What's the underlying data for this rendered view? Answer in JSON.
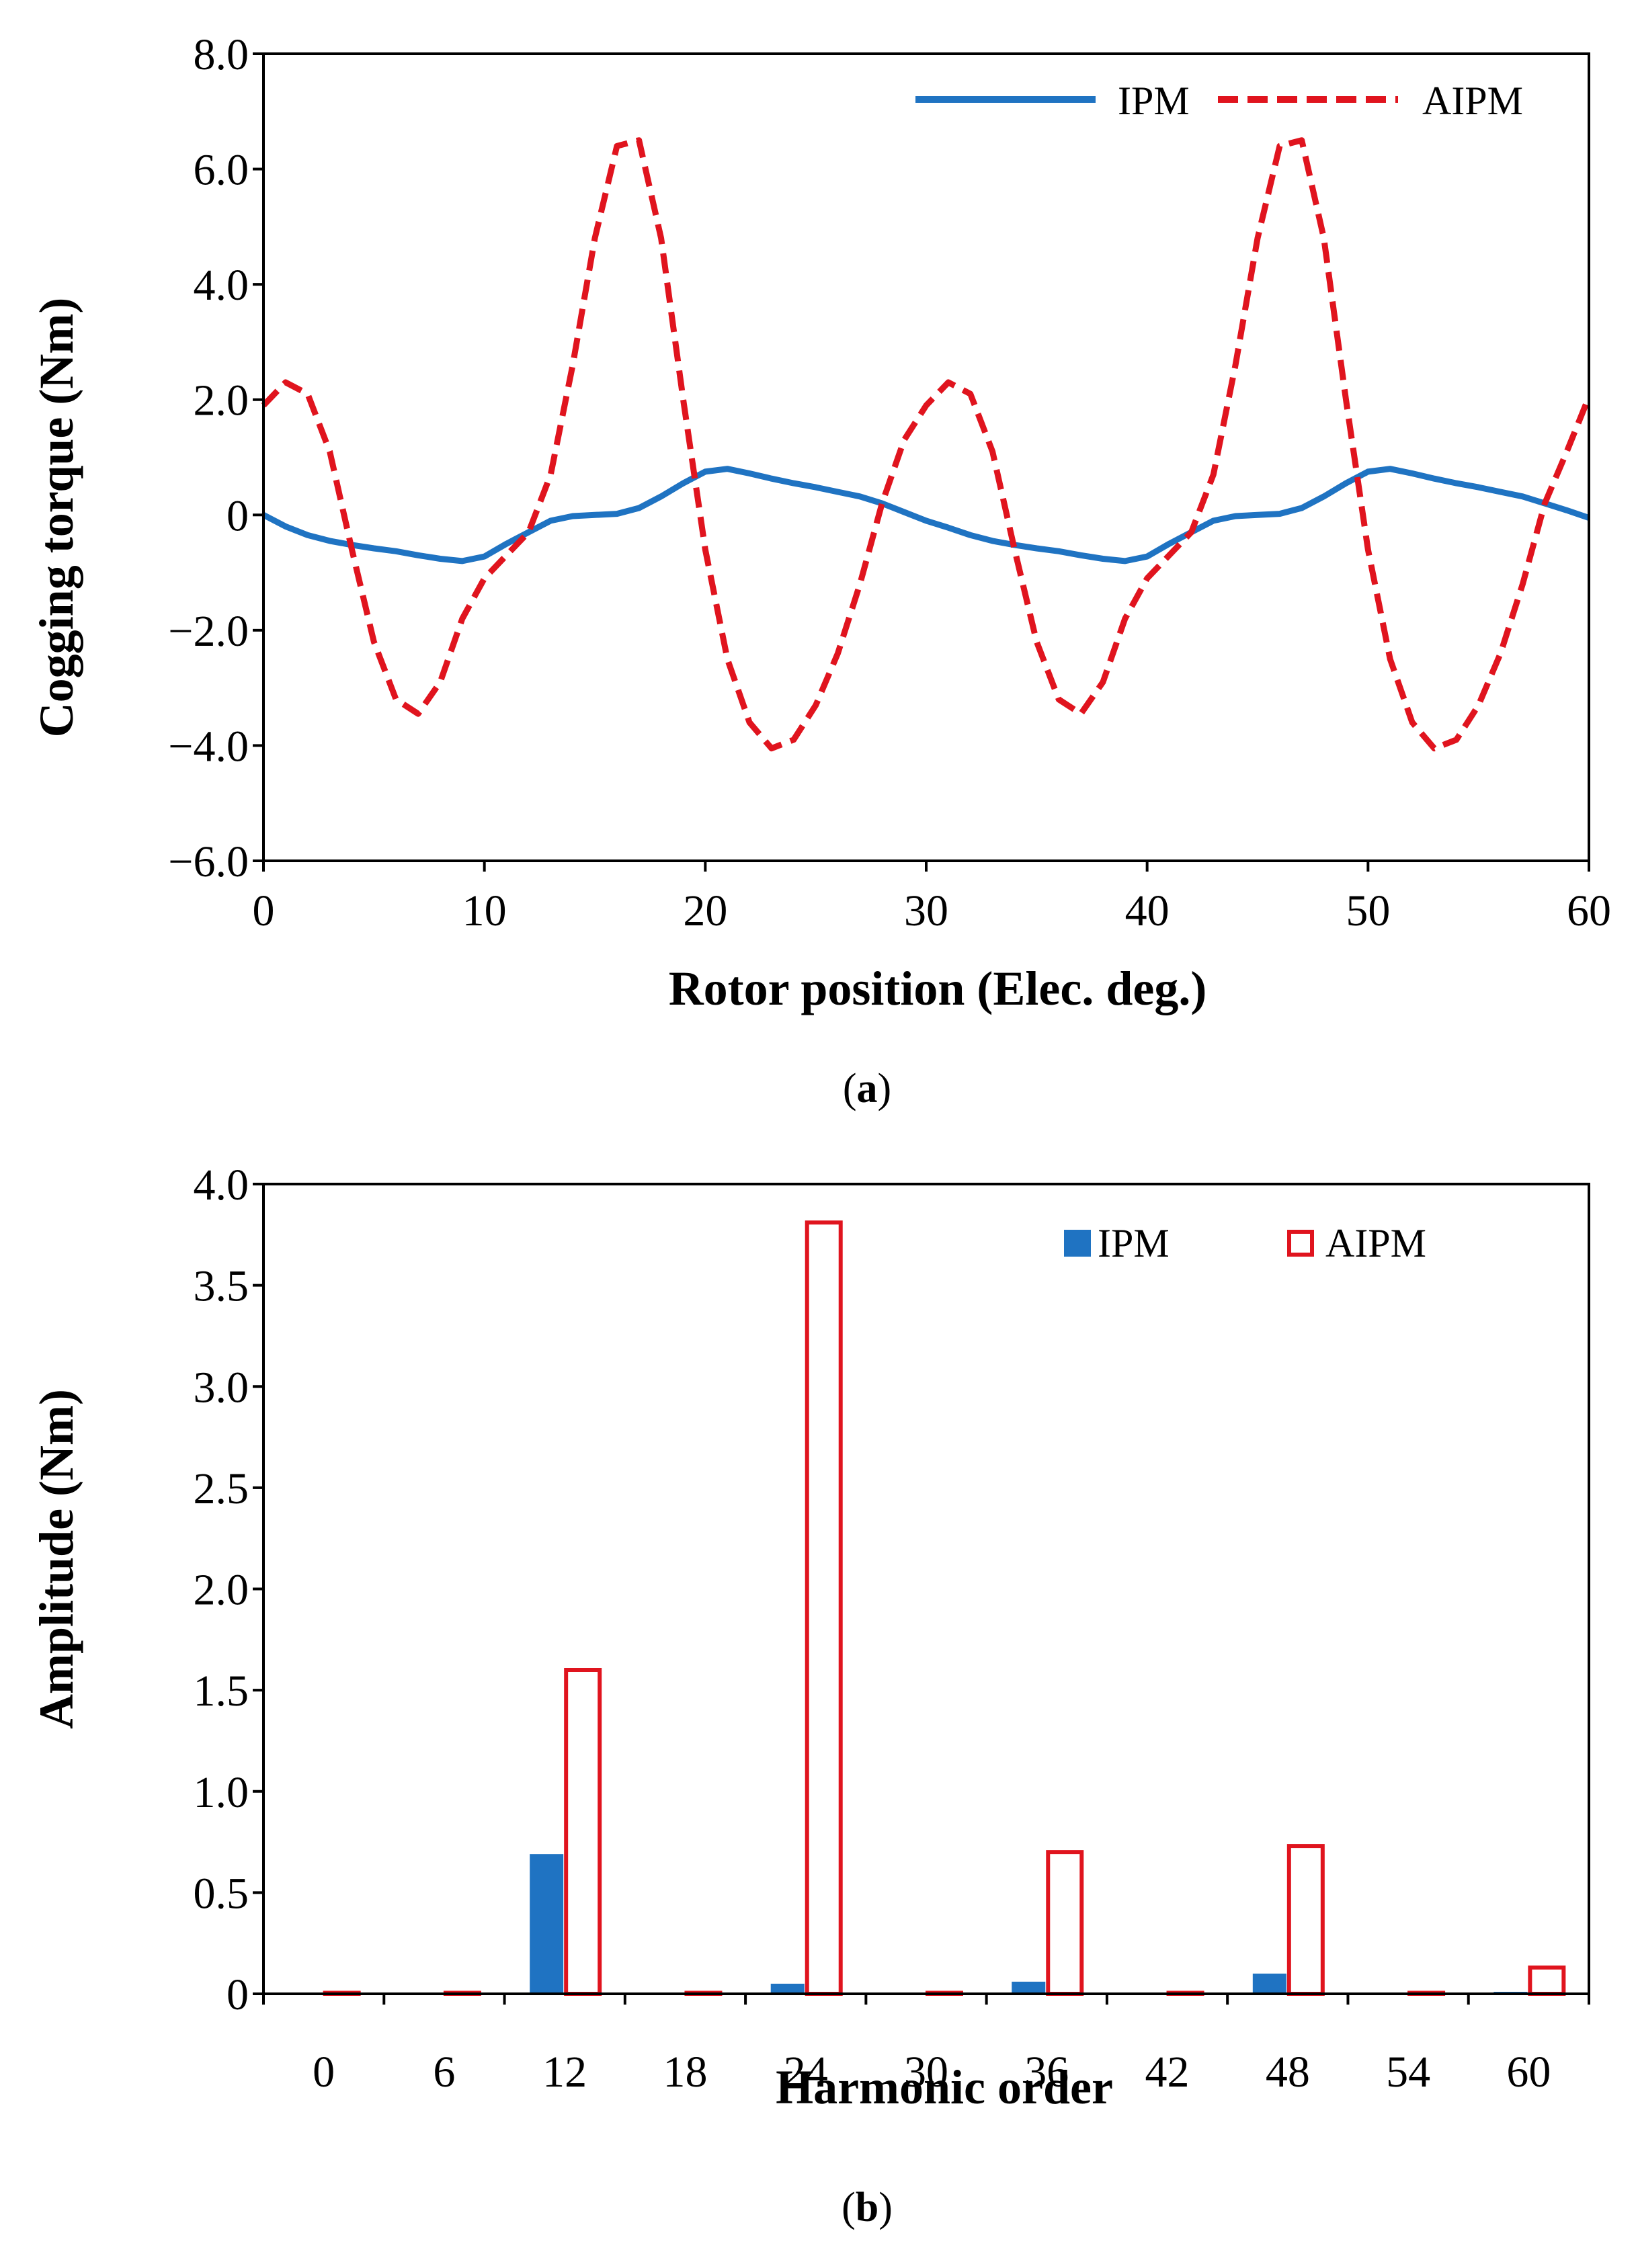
{
  "chart_data": [
    {
      "type": "line",
      "panel_label": "a",
      "xlabel": "Rotor position (Elec. deg.)",
      "ylabel": "Cogging torque (Nm)",
      "xlim": [
        0,
        60
      ],
      "ylim": [
        -6.0,
        8.0
      ],
      "xticks": [
        0,
        10,
        20,
        30,
        40,
        50,
        60
      ],
      "xtick_labels": [
        "0",
        "10",
        "20",
        "30",
        "40",
        "50",
        "60"
      ],
      "yticks": [
        -6.0,
        -4.0,
        -2.0,
        0,
        2.0,
        4.0,
        6.0,
        8.0
      ],
      "ytick_labels": [
        "−6.0",
        "−4.0",
        "−2.0",
        "0",
        "2.0",
        "4.0",
        "6.0",
        "8.0"
      ],
      "grid": false,
      "legend_position": "top-right",
      "series": [
        {
          "name": "IPM",
          "color": "#1f73c2",
          "style": "solid",
          "x": [
            0,
            1,
            2,
            3,
            4,
            5,
            6,
            7,
            8,
            9,
            10,
            11,
            12,
            13,
            14,
            15,
            16,
            17,
            18,
            19,
            20,
            21,
            22,
            23,
            24,
            25,
            26,
            27,
            28,
            29,
            30,
            31,
            32,
            33,
            34,
            35,
            36,
            37,
            38,
            39,
            40,
            41,
            42,
            43,
            44,
            45,
            46,
            47,
            48,
            49,
            50,
            51,
            52,
            53,
            54,
            55,
            56,
            57,
            58,
            59,
            60
          ],
          "y": [
            0,
            -0.2,
            -0.35,
            -0.45,
            -0.52,
            -0.58,
            -0.63,
            -0.7,
            -0.76,
            -0.8,
            -0.72,
            -0.5,
            -0.3,
            -0.1,
            -0.02,
            0,
            0.02,
            0.12,
            0.32,
            0.55,
            0.75,
            0.8,
            0.72,
            0.63,
            0.55,
            0.48,
            0.4,
            0.32,
            0.2,
            0.05,
            -0.1,
            -0.22,
            -0.35,
            -0.45,
            -0.52,
            -0.58,
            -0.63,
            -0.7,
            -0.76,
            -0.8,
            -0.72,
            -0.5,
            -0.3,
            -0.1,
            -0.02,
            0,
            0.02,
            0.12,
            0.32,
            0.55,
            0.75,
            0.8,
            0.72,
            0.63,
            0.55,
            0.48,
            0.4,
            0.32,
            0.2,
            0.08,
            -0.05
          ]
        },
        {
          "name": "AIPM",
          "color": "#e0141e",
          "style": "dashed",
          "x": [
            0,
            1,
            2,
            3,
            4,
            5,
            6,
            7,
            8,
            9,
            10,
            11,
            12,
            13,
            14,
            15,
            16,
            17,
            18,
            19,
            20,
            21,
            22,
            23,
            24,
            25,
            26,
            27,
            28,
            29,
            30,
            31,
            32,
            33,
            34,
            35,
            36,
            37,
            38,
            39,
            40,
            41,
            42,
            43,
            44,
            45,
            46,
            47,
            48,
            49,
            50,
            51,
            52,
            53,
            54,
            55,
            56,
            57,
            58,
            59,
            60
          ],
          "y": [
            1.9,
            2.3,
            2.1,
            1.1,
            -0.6,
            -2.2,
            -3.2,
            -3.45,
            -2.9,
            -1.8,
            -1.1,
            -0.7,
            -0.3,
            0.7,
            2.6,
            4.8,
            6.4,
            6.5,
            4.8,
            2.0,
            -0.6,
            -2.5,
            -3.6,
            -4.05,
            -3.9,
            -3.3,
            -2.4,
            -1.2,
            0.2,
            1.3,
            1.9,
            2.3,
            2.1,
            1.1,
            -0.6,
            -2.2,
            -3.2,
            -3.45,
            -2.9,
            -1.8,
            -1.1,
            -0.7,
            -0.3,
            0.7,
            2.6,
            4.8,
            6.4,
            6.5,
            4.8,
            2.0,
            -0.6,
            -2.5,
            -3.6,
            -4.05,
            -3.9,
            -3.3,
            -2.4,
            -1.2,
            0.2,
            1.1,
            2.05
          ]
        }
      ]
    },
    {
      "type": "bar",
      "panel_label": "b",
      "xlabel": "Harmonic order",
      "ylabel": "Amplitude (Nm)",
      "categories": [
        "0",
        "6",
        "12",
        "18",
        "24",
        "30",
        "36",
        "42",
        "48",
        "54",
        "60"
      ],
      "ylim": [
        0,
        4.0
      ],
      "yticks": [
        0,
        0.5,
        1.0,
        1.5,
        2.0,
        2.5,
        3.0,
        3.5,
        4.0
      ],
      "ytick_labels": [
        "0",
        "0.5",
        "1.0",
        "1.5",
        "2.0",
        "2.5",
        "3.0",
        "3.5",
        "4.0"
      ],
      "grid": false,
      "legend_position": "top-right",
      "series": [
        {
          "name": "IPM",
          "color": "#1f73c2",
          "style": "filled",
          "values": [
            0,
            0.005,
            0.69,
            0.005,
            0.05,
            0.005,
            0.06,
            0.005,
            0.1,
            0.005,
            0.01
          ]
        },
        {
          "name": "AIPM",
          "color": "#e0141e",
          "style": "hollow",
          "values": [
            0.005,
            0.005,
            1.6,
            0.005,
            3.81,
            0.005,
            0.7,
            0.005,
            0.73,
            0.005,
            0.13
          ]
        }
      ]
    }
  ]
}
